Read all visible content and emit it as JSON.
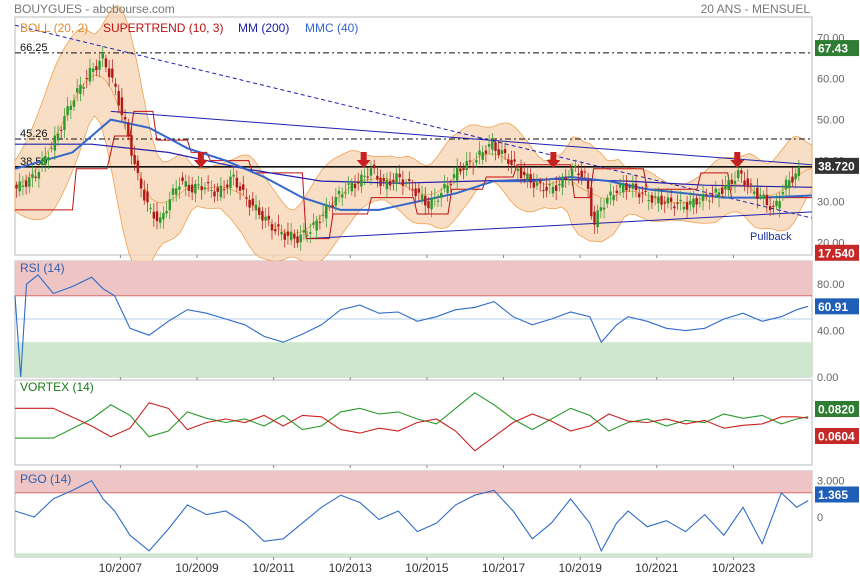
{
  "header": {
    "symbol": "BOUYGUES - abcbourse.com",
    "period": "20 ANS - MENSUEL"
  },
  "colors": {
    "price": "#c01818",
    "boll_fill": "#f5d3b0",
    "boll_line": "#f0a050",
    "supertrend": "#c01010",
    "mm200": "#2020b0",
    "mmc40": "#3366cc",
    "rsi_line": "#2f6cc8",
    "vortex_plus": "#2a9a2a",
    "vortex_minus": "#cc2020",
    "pgo_line": "#2f6cc8",
    "zone_red": "#efc4c4",
    "zone_green": "#cfe6cf",
    "badge_green": "#2e7d32",
    "badge_blue": "#1f5fb8",
    "badge_red": "#c62828",
    "badge_dark": "#333333"
  },
  "chart_data": [
    {
      "id": "price",
      "type": "line",
      "title": "",
      "legend": [
        "BOLL (20, 2)",
        "SUPERTREND (10, 3)",
        "MM (200)",
        "MMC (40)"
      ],
      "x_ticks": [
        "10/2007",
        "10/2009",
        "10/2011",
        "10/2013",
        "10/2015",
        "10/2017",
        "10/2019",
        "10/2021",
        "10/2023"
      ],
      "x_range": [
        2005.0,
        2025.8
      ],
      "ylim": [
        17,
        75
      ],
      "y_ticks": [
        20,
        30,
        40,
        50,
        60,
        70
      ],
      "y_tick_labels": [
        "20.00",
        "30.00",
        "40.00",
        "50.00",
        "60.00",
        "70.00"
      ],
      "levels": [
        {
          "label": "66.25",
          "value": 66.25,
          "style": "dashdot"
        },
        {
          "label": "45.26",
          "value": 45.26,
          "style": "dashdot"
        },
        {
          "label": "38.50",
          "value": 38.5,
          "style": "solid"
        }
      ],
      "badges": [
        {
          "label": "67.43",
          "value": 67.43,
          "color": "green"
        },
        {
          "label": "38.720",
          "value": 38.72,
          "color": "dark"
        },
        {
          "label": "17.540",
          "value": 17.54,
          "color": "red"
        }
      ],
      "annotation": "Pullback",
      "signal_arrows_x": [
        2009.85,
        2014.1,
        2019.05,
        2023.85
      ],
      "close": {
        "x": [
          2005.0,
          2005.5,
          2006.0,
          2006.5,
          2007.0,
          2007.3,
          2007.6,
          2007.9,
          2008.2,
          2008.5,
          2008.8,
          2009.0,
          2009.3,
          2009.6,
          2009.9,
          2010.3,
          2010.7,
          2011.0,
          2011.4,
          2011.7,
          2012.0,
          2012.4,
          2012.8,
          2013.2,
          2013.6,
          2014.0,
          2014.3,
          2014.6,
          2015.0,
          2015.4,
          2015.8,
          2016.2,
          2016.6,
          2017.0,
          2017.4,
          2017.8,
          2018.2,
          2018.6,
          2019.0,
          2019.3,
          2019.6,
          2019.9,
          2020.1,
          2020.3,
          2020.7,
          2021.0,
          2021.5,
          2022.0,
          2022.5,
          2023.0,
          2023.3,
          2023.6,
          2023.9,
          2024.2,
          2024.5,
          2024.8,
          2025.1,
          2025.4,
          2025.7
        ],
        "y": [
          33,
          36,
          44,
          55,
          62,
          65,
          58,
          48,
          36,
          28,
          25,
          30,
          35,
          33,
          34,
          32,
          36,
          31,
          27,
          24,
          22,
          21,
          24,
          29,
          33,
          35,
          38,
          34,
          36,
          33,
          29,
          33,
          38,
          40,
          44,
          41,
          37,
          34,
          33,
          35,
          38,
          36,
          24,
          29,
          33,
          34,
          31,
          30,
          29,
          31,
          32,
          34,
          37,
          33,
          31,
          28,
          34,
          37,
          38.72
        ]
      },
      "supertrend": {
        "x": [
          2005.0,
          2006.5,
          2006.6,
          2007.4,
          2007.6,
          2008.0,
          2008.1,
          2008.6,
          2008.7,
          2009.5,
          2009.6,
          2010.0,
          2010.1,
          2011.1,
          2011.2,
          2012.5,
          2012.6,
          2013.2,
          2013.3,
          2014.2,
          2014.3,
          2015.4,
          2015.5,
          2016.3,
          2016.4,
          2017.2,
          2017.3,
          2018.0,
          2018.1,
          2019.5,
          2019.6,
          2020.0,
          2020.1,
          2021.4,
          2021.5,
          2022.8,
          2022.9,
          2023.6,
          2023.7,
          2025.8
        ],
        "y": [
          28,
          28,
          38,
          38,
          46,
          46,
          52,
          52,
          45,
          45,
          42,
          42,
          40,
          40,
          37,
          37,
          21,
          21,
          27,
          27,
          31,
          31,
          27,
          27,
          33,
          33,
          36,
          36,
          39,
          39,
          31,
          31,
          38,
          38,
          33,
          33,
          37,
          37,
          31,
          31
        ]
      },
      "mm200": {
        "x": [
          2005.0,
          2007.0,
          2009.0,
          2011.0,
          2013.0,
          2015.0,
          2017.0,
          2019.0,
          2021.0,
          2023.0,
          2025.8
        ],
        "y": [
          44,
          44,
          42,
          38,
          35,
          34.5,
          35,
          35.5,
          35,
          34,
          33.5
        ]
      },
      "mmc40": {
        "x": [
          2005.0,
          2006.5,
          2007.5,
          2008.5,
          2009.5,
          2010.5,
          2011.5,
          2012.5,
          2013.5,
          2014.5,
          2015.5,
          2016.5,
          2017.5,
          2018.5,
          2019.5,
          2020.5,
          2021.5,
          2022.5,
          2023.5,
          2024.5,
          2025.8
        ],
        "y": [
          38,
          42,
          50,
          48,
          43,
          40,
          36,
          31,
          28,
          28,
          30,
          32,
          35,
          35,
          36,
          35,
          33,
          32,
          31,
          31,
          31.5
        ]
      },
      "trendlines": [
        {
          "name": "resistance",
          "x": [
            2007.5,
            2025.8
          ],
          "y": [
            52,
            39
          ]
        },
        {
          "name": "support",
          "x": [
            2012.6,
            2025.8
          ],
          "y": [
            21,
            27.5
          ]
        },
        {
          "name": "long-term-downtrend",
          "x": [
            2005.0,
            2025.8
          ],
          "y": [
            73,
            26
          ]
        }
      ]
    },
    {
      "id": "rsi",
      "type": "line",
      "title": "RSI (14)",
      "ylim": [
        0,
        100
      ],
      "y_ticks": [
        0,
        40,
        80
      ],
      "zones": {
        "upper": [
          70,
          100
        ],
        "lower": [
          0,
          30
        ],
        "mid": 50
      },
      "badge": {
        "label": "60.91",
        "color": "blue"
      },
      "x": [
        2005.0,
        2005.15,
        2005.3,
        2005.6,
        2006.0,
        2006.5,
        2007.0,
        2007.3,
        2007.6,
        2008.0,
        2008.5,
        2009.0,
        2009.5,
        2010.0,
        2010.5,
        2011.0,
        2011.5,
        2012.0,
        2012.5,
        2013.0,
        2013.5,
        2014.0,
        2014.5,
        2015.0,
        2015.5,
        2016.0,
        2016.5,
        2017.0,
        2017.5,
        2018.0,
        2018.5,
        2019.0,
        2019.5,
        2020.0,
        2020.3,
        2020.7,
        2021.0,
        2021.5,
        2022.0,
        2022.5,
        2023.0,
        2023.5,
        2024.0,
        2024.5,
        2025.0,
        2025.4,
        2025.7
      ],
      "y": [
        70,
        0,
        80,
        88,
        72,
        78,
        86,
        76,
        70,
        42,
        36,
        48,
        58,
        55,
        50,
        45,
        35,
        30,
        37,
        45,
        58,
        62,
        55,
        56,
        48,
        52,
        58,
        60,
        65,
        52,
        45,
        50,
        56,
        52,
        30,
        45,
        52,
        48,
        42,
        40,
        42,
        50,
        55,
        48,
        52,
        58,
        60.91
      ]
    },
    {
      "id": "vortex",
      "type": "line",
      "title": "VORTEX (14)",
      "ylim": [
        -0.6,
        0.6
      ],
      "badges": [
        {
          "label": "0.0820",
          "color": "green"
        },
        {
          "label": "0.0604",
          "color": "red"
        }
      ],
      "series": [
        {
          "name": "VI+",
          "x": [
            2005.0,
            2006.0,
            2007.0,
            2007.5,
            2008.0,
            2008.5,
            2009.0,
            2009.5,
            2010.0,
            2010.5,
            2011.0,
            2011.5,
            2012.0,
            2012.5,
            2013.0,
            2013.5,
            2014.0,
            2014.5,
            2015.0,
            2015.5,
            2016.0,
            2016.5,
            2017.0,
            2017.5,
            2018.0,
            2018.5,
            2019.0,
            2019.5,
            2020.0,
            2020.5,
            2021.0,
            2021.5,
            2022.0,
            2022.5,
            2023.0,
            2023.5,
            2024.0,
            2024.5,
            2025.0,
            2025.4,
            2025.7
          ],
          "y": [
            -0.22,
            -0.22,
            0.05,
            0.25,
            0.1,
            -0.2,
            -0.12,
            0.15,
            0.06,
            0.0,
            0.05,
            -0.05,
            0.1,
            -0.1,
            -0.05,
            0.15,
            0.2,
            0.12,
            0.15,
            0.05,
            -0.02,
            0.2,
            0.42,
            0.25,
            0.05,
            -0.1,
            0.05,
            0.2,
            0.1,
            -0.12,
            0.0,
            0.05,
            -0.05,
            0.03,
            0.0,
            0.12,
            0.06,
            0.1,
            -0.02,
            0.05,
            0.082
          ]
        },
        {
          "name": "VI-",
          "x": [
            2005.0,
            2006.0,
            2007.0,
            2007.5,
            2008.0,
            2008.5,
            2009.0,
            2009.5,
            2010.0,
            2010.5,
            2011.0,
            2011.5,
            2012.0,
            2012.5,
            2013.0,
            2013.5,
            2014.0,
            2014.5,
            2015.0,
            2015.5,
            2016.0,
            2016.5,
            2017.0,
            2017.5,
            2018.0,
            2018.5,
            2019.0,
            2019.5,
            2020.0,
            2020.5,
            2021.0,
            2021.5,
            2022.0,
            2022.5,
            2023.0,
            2023.5,
            2024.0,
            2024.5,
            2025.0,
            2025.4,
            2025.7
          ],
          "y": [
            0.2,
            0.2,
            -0.05,
            -0.2,
            -0.08,
            0.28,
            0.2,
            -0.1,
            0.0,
            0.05,
            0.0,
            0.1,
            -0.05,
            0.1,
            0.08,
            -0.1,
            -0.15,
            -0.08,
            -0.12,
            0.0,
            0.05,
            -0.12,
            -0.4,
            -0.2,
            0.0,
            0.12,
            0.02,
            -0.12,
            -0.05,
            0.12,
            0.02,
            0.0,
            0.05,
            -0.02,
            0.03,
            -0.08,
            -0.04,
            -0.02,
            0.08,
            0.08,
            0.0604
          ]
        }
      ]
    },
    {
      "id": "pgo",
      "type": "line",
      "title": "PGO (14)",
      "ylim": [
        -3.3,
        3.8
      ],
      "y_ticks": [
        0,
        3
      ],
      "y_tick_labels": [
        "0",
        "3.000"
      ],
      "zones": {
        "upper": [
          2.0,
          3.8
        ],
        "lower": [
          -3.3,
          -3.0
        ]
      },
      "badge": {
        "label": "1.365",
        "color": "blue"
      },
      "x": [
        2005.0,
        2005.5,
        2006.0,
        2006.5,
        2007.0,
        2007.3,
        2007.6,
        2008.0,
        2008.5,
        2009.0,
        2009.5,
        2010.0,
        2010.5,
        2011.0,
        2011.5,
        2012.0,
        2012.5,
        2013.0,
        2013.5,
        2014.0,
        2014.5,
        2015.0,
        2015.5,
        2016.0,
        2016.5,
        2017.0,
        2017.5,
        2018.0,
        2018.5,
        2019.0,
        2019.5,
        2020.0,
        2020.3,
        2020.7,
        2021.0,
        2021.5,
        2022.0,
        2022.5,
        2023.0,
        2023.5,
        2024.0,
        2024.5,
        2025.0,
        2025.4,
        2025.7
      ],
      "y": [
        0.5,
        0.0,
        1.5,
        2.2,
        3.0,
        1.5,
        0.5,
        -1.5,
        -2.8,
        -1.0,
        1.0,
        0.2,
        0.5,
        -0.5,
        -2.0,
        -1.8,
        -0.5,
        0.8,
        1.8,
        1.2,
        -0.2,
        0.5,
        -1.2,
        -0.5,
        1.0,
        1.8,
        2.2,
        0.5,
        -1.8,
        -0.5,
        1.5,
        -0.5,
        -2.8,
        -0.5,
        0.5,
        -0.8,
        -0.3,
        -1.2,
        0.2,
        -1.5,
        0.8,
        -2.2,
        2.0,
        0.8,
        1.365
      ]
    }
  ]
}
